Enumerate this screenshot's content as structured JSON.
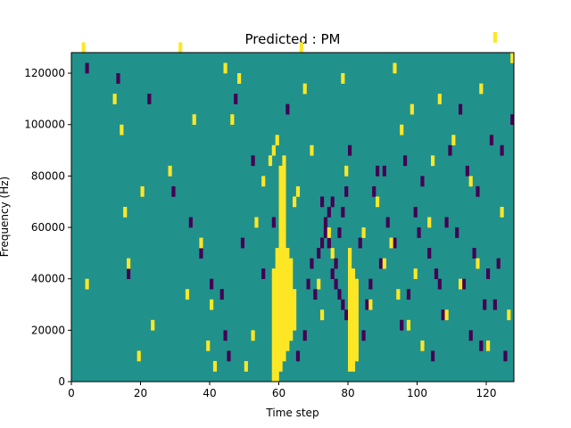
{
  "chart_data": {
    "type": "heatmap",
    "title": "Predicted : PM",
    "xlabel": "Time step",
    "ylabel": "Frequency (Hz)",
    "xlim": [
      0,
      128
    ],
    "ylim": [
      0,
      128000
    ],
    "xticks": [
      0,
      20,
      40,
      60,
      80,
      100,
      120
    ],
    "xtick_labels": [
      "0",
      "20",
      "40",
      "60",
      "80",
      "100",
      "120"
    ],
    "yticks": [
      0,
      20000,
      40000,
      60000,
      80000,
      100000,
      120000
    ],
    "ytick_labels": [
      "0",
      "20000",
      "40000",
      "60000",
      "80000",
      "100000",
      "120000"
    ],
    "grid": false,
    "colormap": "viridis",
    "colors": {
      "background": "#21918c",
      "high": "#fde725",
      "low": "#440154"
    },
    "cell_width": 1,
    "cell_height": 4000,
    "high_cells": [
      [
        58,
        0
      ],
      [
        58,
        1
      ],
      [
        58,
        2
      ],
      [
        58,
        3
      ],
      [
        58,
        4
      ],
      [
        58,
        5
      ],
      [
        58,
        6
      ],
      [
        58,
        7
      ],
      [
        58,
        8
      ],
      [
        58,
        9
      ],
      [
        58,
        10
      ],
      [
        59,
        0
      ],
      [
        59,
        1
      ],
      [
        59,
        2
      ],
      [
        59,
        3
      ],
      [
        59,
        4
      ],
      [
        59,
        5
      ],
      [
        59,
        6
      ],
      [
        59,
        7
      ],
      [
        59,
        8
      ],
      [
        59,
        9
      ],
      [
        59,
        10
      ],
      [
        59,
        11
      ],
      [
        59,
        12
      ],
      [
        60,
        1
      ],
      [
        60,
        2
      ],
      [
        60,
        3
      ],
      [
        60,
        4
      ],
      [
        60,
        5
      ],
      [
        60,
        6
      ],
      [
        60,
        7
      ],
      [
        60,
        8
      ],
      [
        60,
        9
      ],
      [
        60,
        10
      ],
      [
        60,
        11
      ],
      [
        60,
        12
      ],
      [
        60,
        13
      ],
      [
        60,
        14
      ],
      [
        60,
        15
      ],
      [
        60,
        16
      ],
      [
        60,
        17
      ],
      [
        60,
        18
      ],
      [
        60,
        19
      ],
      [
        60,
        20
      ],
      [
        61,
        2
      ],
      [
        61,
        3
      ],
      [
        61,
        4
      ],
      [
        61,
        5
      ],
      [
        61,
        6
      ],
      [
        61,
        7
      ],
      [
        61,
        8
      ],
      [
        61,
        9
      ],
      [
        61,
        10
      ],
      [
        61,
        11
      ],
      [
        61,
        12
      ],
      [
        61,
        13
      ],
      [
        61,
        14
      ],
      [
        61,
        15
      ],
      [
        61,
        16
      ],
      [
        61,
        17
      ],
      [
        61,
        18
      ],
      [
        61,
        19
      ],
      [
        61,
        20
      ],
      [
        61,
        21
      ],
      [
        62,
        3
      ],
      [
        62,
        4
      ],
      [
        62,
        5
      ],
      [
        62,
        6
      ],
      [
        62,
        7
      ],
      [
        62,
        8
      ],
      [
        62,
        9
      ],
      [
        62,
        10
      ],
      [
        62,
        11
      ],
      [
        62,
        12
      ],
      [
        63,
        4
      ],
      [
        63,
        5
      ],
      [
        63,
        6
      ],
      [
        63,
        7
      ],
      [
        63,
        8
      ],
      [
        63,
        9
      ],
      [
        63,
        10
      ],
      [
        63,
        11
      ],
      [
        64,
        5
      ],
      [
        64,
        6
      ],
      [
        64,
        7
      ],
      [
        64,
        8
      ],
      [
        80,
        1
      ],
      [
        80,
        2
      ],
      [
        80,
        3
      ],
      [
        80,
        4
      ],
      [
        80,
        5
      ],
      [
        80,
        6
      ],
      [
        80,
        7
      ],
      [
        80,
        8
      ],
      [
        80,
        9
      ],
      [
        80,
        10
      ],
      [
        80,
        11
      ],
      [
        80,
        12
      ],
      [
        81,
        1
      ],
      [
        81,
        2
      ],
      [
        81,
        3
      ],
      [
        81,
        4
      ],
      [
        81,
        5
      ],
      [
        81,
        6
      ],
      [
        81,
        7
      ],
      [
        81,
        8
      ],
      [
        81,
        9
      ],
      [
        81,
        10
      ],
      [
        82,
        2
      ],
      [
        82,
        3
      ],
      [
        82,
        4
      ],
      [
        82,
        5
      ],
      [
        82,
        6
      ],
      [
        82,
        7
      ],
      [
        82,
        8
      ],
      [
        82,
        9
      ],
      [
        4,
        9
      ],
      [
        12,
        27
      ],
      [
        15,
        16
      ],
      [
        16,
        11
      ],
      [
        19,
        2
      ],
      [
        20,
        18
      ],
      [
        23,
        5
      ],
      [
        31,
        32
      ],
      [
        33,
        8
      ],
      [
        37,
        13
      ],
      [
        39,
        3
      ],
      [
        40,
        7
      ],
      [
        41,
        1
      ],
      [
        44,
        30
      ],
      [
        46,
        25
      ],
      [
        48,
        29
      ],
      [
        50,
        1
      ],
      [
        52,
        4
      ],
      [
        55,
        19
      ],
      [
        57,
        21
      ],
      [
        58,
        22
      ],
      [
        59,
        23
      ],
      [
        64,
        17
      ],
      [
        65,
        18
      ],
      [
        66,
        32
      ],
      [
        67,
        28
      ],
      [
        71,
        9
      ],
      [
        72,
        6
      ],
      [
        75,
        12
      ],
      [
        78,
        29
      ],
      [
        79,
        20
      ],
      [
        84,
        14
      ],
      [
        86,
        7
      ],
      [
        90,
        11
      ],
      [
        92,
        13
      ],
      [
        94,
        8
      ],
      [
        95,
        24
      ],
      [
        97,
        5
      ],
      [
        99,
        10
      ],
      [
        101,
        3
      ],
      [
        103,
        15
      ],
      [
        104,
        21
      ],
      [
        106,
        27
      ],
      [
        108,
        6
      ],
      [
        112,
        9
      ],
      [
        115,
        19
      ],
      [
        118,
        28
      ],
      [
        120,
        3
      ],
      [
        122,
        33
      ],
      [
        124,
        16
      ],
      [
        127,
        31
      ],
      [
        3,
        32
      ],
      [
        14,
        24
      ],
      [
        28,
        20
      ],
      [
        35,
        25
      ],
      [
        53,
        15
      ],
      [
        69,
        22
      ],
      [
        74,
        14
      ],
      [
        88,
        17
      ],
      [
        93,
        30
      ],
      [
        98,
        26
      ],
      [
        110,
        23
      ],
      [
        117,
        11
      ],
      [
        126,
        6
      ]
    ],
    "low_cells": [
      [
        4,
        30
      ],
      [
        13,
        29
      ],
      [
        16,
        10
      ],
      [
        22,
        27
      ],
      [
        29,
        18
      ],
      [
        34,
        15
      ],
      [
        37,
        12
      ],
      [
        40,
        9
      ],
      [
        43,
        8
      ],
      [
        44,
        4
      ],
      [
        45,
        2
      ],
      [
        47,
        27
      ],
      [
        49,
        13
      ],
      [
        52,
        21
      ],
      [
        55,
        10
      ],
      [
        58,
        15
      ],
      [
        62,
        26
      ],
      [
        65,
        2
      ],
      [
        67,
        4
      ],
      [
        68,
        9
      ],
      [
        69,
        11
      ],
      [
        70,
        8
      ],
      [
        71,
        12
      ],
      [
        72,
        17
      ],
      [
        73,
        15
      ],
      [
        74,
        13
      ],
      [
        75,
        10
      ],
      [
        76,
        9
      ],
      [
        77,
        8
      ],
      [
        78,
        7
      ],
      [
        79,
        6
      ],
      [
        76,
        11
      ],
      [
        77,
        14
      ],
      [
        78,
        16
      ],
      [
        79,
        18
      ],
      [
        80,
        22
      ],
      [
        84,
        4
      ],
      [
        85,
        7
      ],
      [
        86,
        9
      ],
      [
        88,
        20
      ],
      [
        89,
        11
      ],
      [
        91,
        15
      ],
      [
        93,
        13
      ],
      [
        95,
        5
      ],
      [
        97,
        8
      ],
      [
        99,
        16
      ],
      [
        101,
        19
      ],
      [
        103,
        12
      ],
      [
        105,
        10
      ],
      [
        107,
        6
      ],
      [
        109,
        22
      ],
      [
        111,
        14
      ],
      [
        113,
        9
      ],
      [
        115,
        4
      ],
      [
        117,
        18
      ],
      [
        119,
        7
      ],
      [
        121,
        23
      ],
      [
        123,
        11
      ],
      [
        125,
        2
      ],
      [
        127,
        25
      ],
      [
        72,
        13
      ],
      [
        73,
        14
      ],
      [
        74,
        16
      ],
      [
        75,
        17
      ],
      [
        83,
        13
      ],
      [
        87,
        18
      ],
      [
        90,
        20
      ],
      [
        96,
        21
      ],
      [
        100,
        14
      ],
      [
        104,
        2
      ],
      [
        106,
        9
      ],
      [
        108,
        15
      ],
      [
        112,
        26
      ],
      [
        114,
        20
      ],
      [
        116,
        12
      ],
      [
        118,
        3
      ],
      [
        120,
        10
      ],
      [
        122,
        7
      ],
      [
        124,
        22
      ]
    ]
  }
}
